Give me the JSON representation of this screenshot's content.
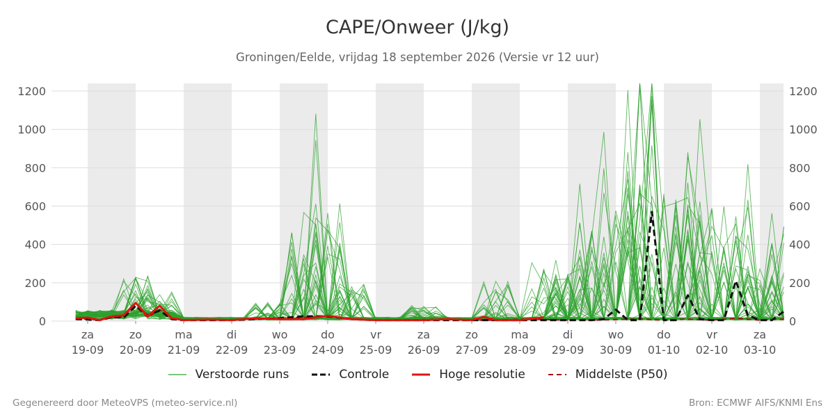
{
  "title": "CAPE/Onweer (J/kg)",
  "subtitle": "Groningen/Eelde, vrijdag 18 september 2026 (Versie vr 12 uur)",
  "footer": {
    "left": "Gegenereerd door MeteoVPS (meteo-service.nl)",
    "right": "Bron: ECMWF AIFS/KNMI Ens"
  },
  "legend": {
    "ensemble": "Verstoorde runs",
    "control": "Controle",
    "hires": "Hoge resolutie",
    "median": "Middelste (P50)"
  },
  "chart_data": {
    "type": "line",
    "title": "CAPE/Onweer (J/kg)",
    "x_axis": {
      "range_days": [
        -1.25,
        13.5
      ],
      "ticks": [
        {
          "day": 0,
          "label": [
            "za",
            "19-09"
          ]
        },
        {
          "day": 1,
          "label": [
            "zo",
            "20-09"
          ]
        },
        {
          "day": 2,
          "label": [
            "ma",
            "21-09"
          ]
        },
        {
          "day": 3,
          "label": [
            "di",
            "22-09"
          ]
        },
        {
          "day": 4,
          "label": [
            "wo",
            "23-09"
          ]
        },
        {
          "day": 5,
          "label": [
            "do",
            "24-09"
          ]
        },
        {
          "day": 6,
          "label": [
            "vr",
            "25-09"
          ]
        },
        {
          "day": 7,
          "label": [
            "za",
            "26-09"
          ]
        },
        {
          "day": 8,
          "label": [
            "zo",
            "27-09"
          ]
        },
        {
          "day": 9,
          "label": [
            "ma",
            "28-09"
          ]
        },
        {
          "day": 10,
          "label": [
            "di",
            "29-09"
          ]
        },
        {
          "day": 11,
          "label": [
            "wo",
            "30-09"
          ]
        },
        {
          "day": 12,
          "label": [
            "do",
            "01-10"
          ]
        },
        {
          "day": 13,
          "label": [
            "vr",
            "02-10"
          ]
        },
        {
          "day": 14,
          "label": [
            "za",
            "03-10"
          ]
        }
      ],
      "night_bands": [
        [
          0,
          1
        ],
        [
          2,
          3
        ],
        [
          4,
          5
        ],
        [
          6,
          7
        ],
        [
          8,
          9
        ],
        [
          10,
          11
        ],
        [
          12,
          13
        ],
        [
          14,
          14.5
        ]
      ]
    },
    "y_axis": {
      "range": [
        0,
        1240
      ],
      "ticks": [
        0,
        200,
        400,
        600,
        800,
        1000,
        1200
      ],
      "both_sides": true
    },
    "grid": true,
    "legend_position": "bottom",
    "colors": {
      "ensemble": "#2ca02c",
      "control": "#111111",
      "hires": "#e0140f",
      "median": "#a01010",
      "night_band": "#ebebeb",
      "grid": "#dddddd"
    },
    "series": [
      {
        "name": "Controle",
        "style": "dashed",
        "x": [
          -0.25,
          0,
          0.25,
          0.5,
          0.75,
          1,
          1.25,
          1.5,
          1.75,
          2,
          2.5,
          3,
          3.5,
          4,
          4.5,
          5,
          5.5,
          6,
          6.5,
          7,
          7.5,
          8,
          8.5,
          9,
          9.5,
          10,
          10.5,
          10.75,
          11,
          11.25,
          11.5,
          11.75,
          12,
          12.25,
          12.5,
          12.75,
          13,
          13.25,
          13.5,
          13.75,
          14,
          14.25,
          14.5
        ],
        "y": [
          10,
          8,
          5,
          20,
          18,
          80,
          30,
          55,
          10,
          5,
          5,
          5,
          10,
          15,
          25,
          25,
          10,
          5,
          5,
          5,
          5,
          5,
          5,
          5,
          5,
          5,
          5,
          10,
          60,
          5,
          5,
          570,
          5,
          5,
          135,
          10,
          5,
          5,
          210,
          30,
          5,
          5,
          50
        ]
      },
      {
        "name": "Hoge resolutie",
        "style": "solid",
        "x": [
          -0.25,
          0,
          0.25,
          0.5,
          0.75,
          1,
          1.25,
          1.5,
          1.75,
          2,
          2.5,
          3,
          3.5,
          4,
          4.5,
          5,
          5.5,
          6,
          6.5,
          7,
          7.5,
          8,
          8.25,
          8.5,
          9,
          9.5
        ],
        "y": [
          15,
          18,
          5,
          25,
          30,
          95,
          25,
          80,
          15,
          5,
          8,
          5,
          15,
          10,
          10,
          28,
          10,
          5,
          5,
          5,
          10,
          5,
          22,
          5,
          5,
          20
        ]
      },
      {
        "name": "Middelste (P50)",
        "style": "dashed",
        "x": [
          -0.25,
          0,
          0.25,
          0.5,
          0.75,
          1,
          1.25,
          1.5,
          1.75,
          2,
          2.5,
          3,
          3.5,
          4,
          4.5,
          5,
          5.5,
          6,
          6.5,
          7,
          7.5,
          8,
          8.5,
          9,
          9.5,
          10,
          10.5,
          11,
          11.5,
          12,
          12.5,
          13,
          13.5,
          14,
          14.5
        ],
        "y": [
          12,
          10,
          5,
          20,
          22,
          75,
          20,
          60,
          12,
          5,
          5,
          5,
          12,
          15,
          20,
          25,
          10,
          5,
          5,
          8,
          8,
          5,
          5,
          10,
          8,
          5,
          5,
          8,
          10,
          5,
          10,
          5,
          15,
          5,
          10
        ]
      }
    ]
  }
}
